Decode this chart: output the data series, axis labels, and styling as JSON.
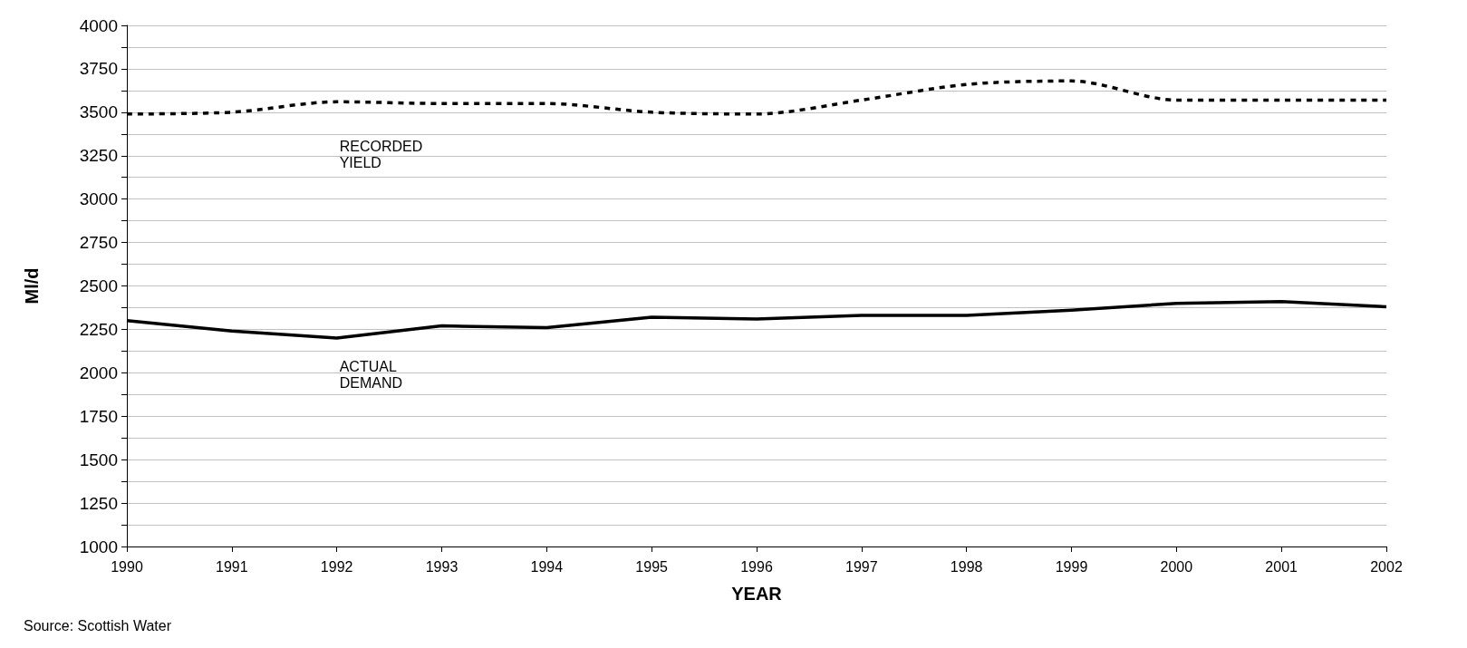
{
  "chart_data": {
    "type": "line",
    "xlabel": "YEAR",
    "ylabel": "Ml/d",
    "annotations": [
      "Source: Scottish Water"
    ],
    "x": [
      1990,
      1991,
      1992,
      1993,
      1994,
      1995,
      1996,
      1997,
      1998,
      1999,
      2000,
      2001,
      2002
    ],
    "series": [
      {
        "name": "RECORDED YIELD",
        "color": "#000000",
        "line_style": "dashed",
        "values": [
          3490,
          3500,
          3560,
          3550,
          3550,
          3500,
          3490,
          3570,
          3660,
          3680,
          3570,
          3570,
          3570
        ]
      },
      {
        "name": "ACTUAL DEMAND",
        "color": "#000000",
        "line_style": "solid",
        "values": [
          2300,
          2240,
          2200,
          2270,
          2260,
          2320,
          2310,
          2330,
          2330,
          2360,
          2400,
          2410,
          2380
        ]
      }
    ],
    "xlim": [
      1990,
      2002
    ],
    "xticks": [
      1990,
      1991,
      1992,
      1993,
      1994,
      1995,
      1996,
      1997,
      1998,
      1999,
      2000,
      2001,
      2002
    ],
    "ylim": [
      1000,
      4000
    ],
    "yticks": [
      1000,
      {
        "value": 1125,
        "label": null
      },
      1250,
      {
        "value": 1375,
        "label": null
      },
      1500,
      {
        "value": 1625,
        "label": null
      },
      1750,
      {
        "value": 1875,
        "label": null
      },
      2000,
      {
        "value": 2125,
        "label": null
      },
      2250,
      {
        "value": 2375,
        "label": null
      },
      2500,
      {
        "value": 2625,
        "label": null
      },
      2750,
      {
        "value": 2875,
        "label": null
      },
      3000,
      {
        "value": 3125,
        "label": null
      },
      3250,
      {
        "value": 3375,
        "label": null
      },
      3500,
      {
        "value": 3625,
        "label": null
      },
      3750,
      {
        "value": 3875,
        "label": null
      },
      4000
    ],
    "grid": "y",
    "marker": "none",
    "legend": false
  }
}
